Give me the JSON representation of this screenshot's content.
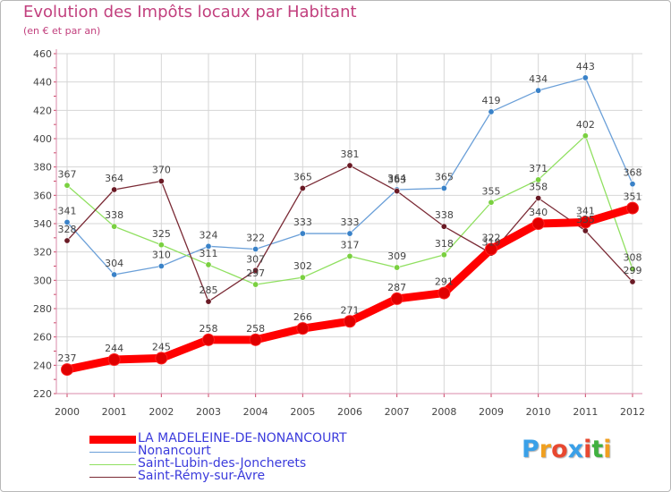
{
  "header": {
    "title": "Evolution des Impôts locaux par Habitant",
    "subtitle": "(en € et par an)"
  },
  "logo": {
    "text": "Proxiti",
    "colors": [
      "#3aa0e8",
      "#f0a020",
      "#e84830",
      "#3aa0e8",
      "#e84830",
      "#40b040",
      "#f0a020"
    ]
  },
  "chart_data": {
    "type": "line",
    "title": "Evolution des Impôts locaux par Habitant",
    "subtitle": "(en € et par an)",
    "x": [
      "2000",
      "2001",
      "2002",
      "2003",
      "2004",
      "2005",
      "2006",
      "2007",
      "2008",
      "2009",
      "2010",
      "2011",
      "2012"
    ],
    "ylim": [
      220,
      460
    ],
    "yticks": [
      220,
      240,
      260,
      280,
      300,
      320,
      340,
      360,
      380,
      400,
      420,
      440,
      460
    ],
    "grid": true,
    "legend_position": "bottom-left",
    "series": [
      {
        "name": "LA MADELEINE-DE-NONANCOURT",
        "color": "#ff0000",
        "thick": true,
        "values": [
          237,
          244,
          245,
          258,
          258,
          266,
          271,
          287,
          291,
          322,
          340,
          341,
          351
        ]
      },
      {
        "name": "Nonancourt",
        "color": "#6a9fd8",
        "point_color": "#3a82c8",
        "values": [
          341,
          304,
          310,
          324,
          322,
          333,
          333,
          364,
          365,
          419,
          434,
          443,
          368
        ]
      },
      {
        "name": "Saint-Lubin-des-Joncherets",
        "color": "#90e060",
        "point_color": "#7ad040",
        "values": [
          367,
          338,
          325,
          311,
          297,
          302,
          317,
          309,
          318,
          355,
          371,
          402,
          308
        ]
      },
      {
        "name": "Saint-Rémy-sur-Avre",
        "color": "#7a2a35",
        "point_color": "#6a1a25",
        "values": [
          328,
          364,
          370,
          285,
          307,
          365,
          381,
          363,
          338,
          319,
          358,
          335,
          299
        ]
      }
    ]
  }
}
